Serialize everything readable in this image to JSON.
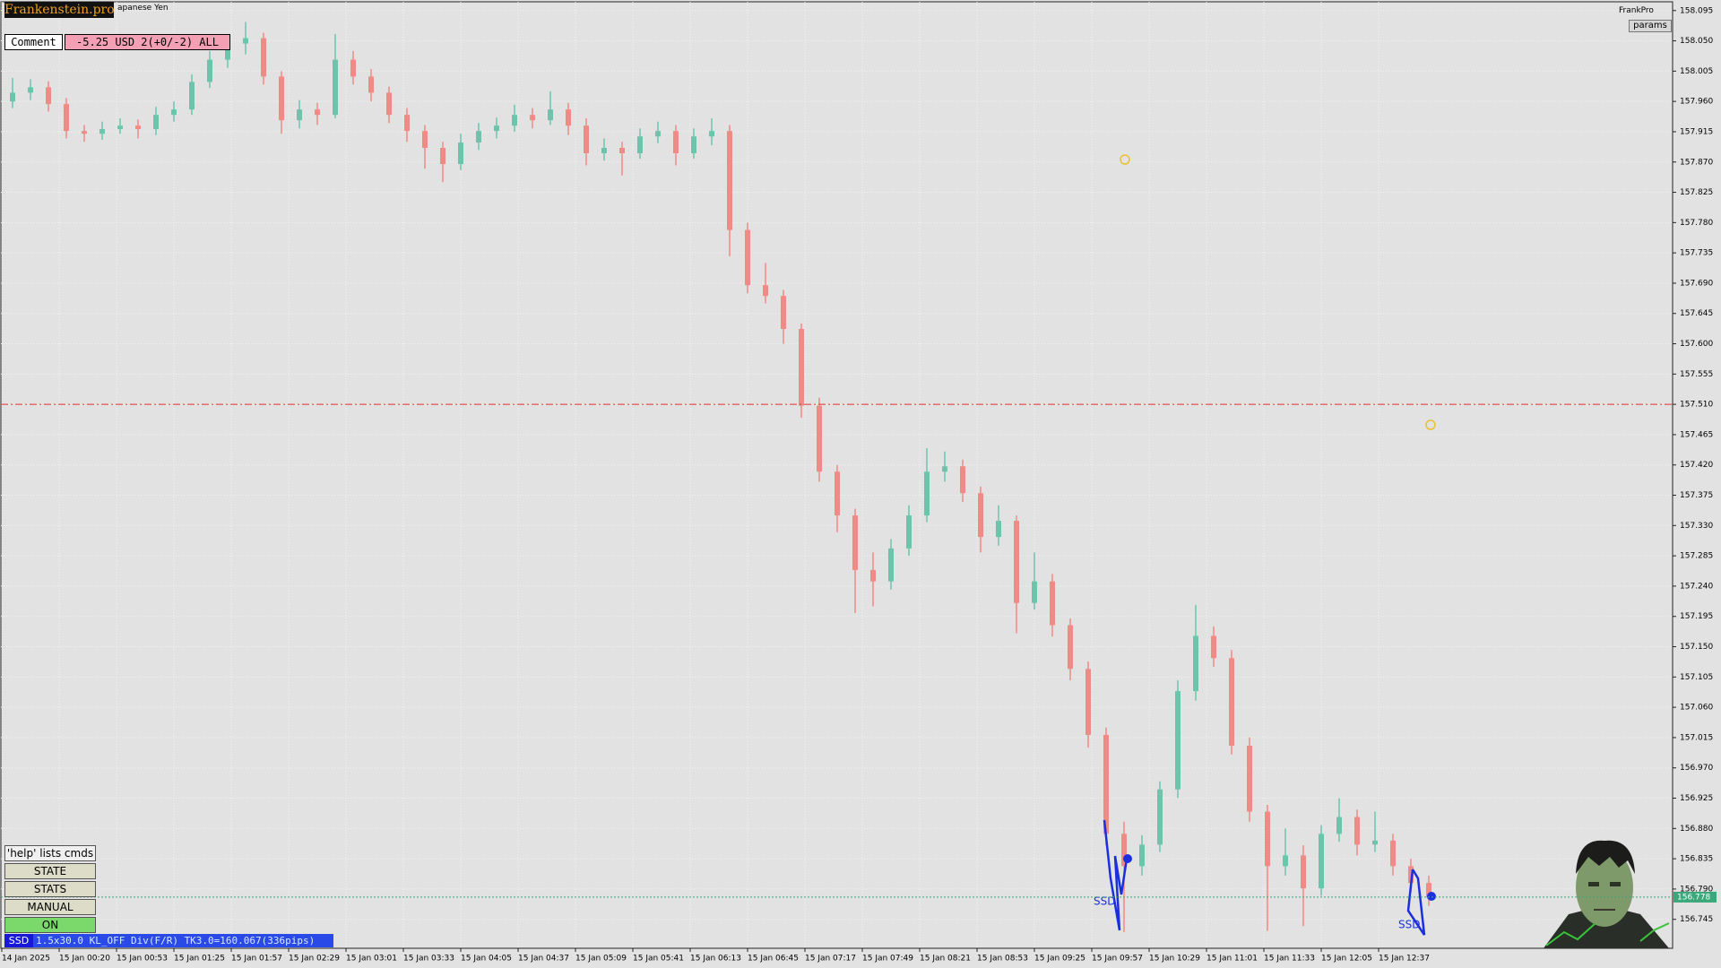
{
  "header": {
    "brand": "Frankenstein.pro",
    "symbol": "apanese Yen",
    "comment_label": "Comment",
    "comment_value": "-5.25 USD 2(+0/-2) ALL",
    "account": "FrankPro",
    "params": "params"
  },
  "buttons": [
    "'help' lists cmds",
    "STATE",
    "STATS",
    "MANUAL",
    "ON"
  ],
  "status": {
    "tag": "SSD",
    "text": "1.5x30.0 KL_OFF Div(F/R) TK3.0=160.067(336pips)"
  },
  "annotations": [
    "SSD",
    "SSD"
  ],
  "chart_data": {
    "type": "candlestick",
    "time_labels": [
      "14 Jan 2025",
      "15 Jan 00:20",
      "15 Jan 00:53",
      "15 Jan 01:25",
      "15 Jan 01:57",
      "15 Jan 02:29",
      "15 Jan 03:01",
      "15 Jan 03:33",
      "15 Jan 04:05",
      "15 Jan 04:37",
      "15 Jan 05:09",
      "15 Jan 05:41",
      "15 Jan 06:13",
      "15 Jan 06:45",
      "15 Jan 07:17",
      "15 Jan 07:49",
      "15 Jan 08:21",
      "15 Jan 08:53",
      "15 Jan 09:25",
      "15 Jan 09:57",
      "15 Jan 10:29",
      "15 Jan 11:01",
      "15 Jan 11:33",
      "15 Jan 12:05",
      "15 Jan 12:37"
    ],
    "candles": [
      [
        157.96,
        157.995,
        157.95,
        157.973
      ],
      [
        157.973,
        157.993,
        157.962,
        157.981
      ],
      [
        157.981,
        157.99,
        157.945,
        157.956
      ],
      [
        157.956,
        157.965,
        157.905,
        157.916
      ],
      [
        157.916,
        157.925,
        157.9,
        157.912
      ],
      [
        157.912,
        157.93,
        157.903,
        157.919
      ],
      [
        157.919,
        157.935,
        157.912,
        157.924
      ],
      [
        157.924,
        157.933,
        157.905,
        157.919
      ],
      [
        157.919,
        157.952,
        157.91,
        157.94
      ],
      [
        157.94,
        157.96,
        157.93,
        157.948
      ],
      [
        157.948,
        158.0,
        157.94,
        157.989
      ],
      [
        157.989,
        158.035,
        157.98,
        158.022
      ],
      [
        158.022,
        158.058,
        158.01,
        158.046
      ],
      [
        158.046,
        158.078,
        158.03,
        158.054
      ],
      [
        158.054,
        158.062,
        157.985,
        157.997
      ],
      [
        157.997,
        158.005,
        157.912,
        157.932
      ],
      [
        157.932,
        157.962,
        157.92,
        157.948
      ],
      [
        157.948,
        157.958,
        157.925,
        157.94
      ],
      [
        157.94,
        158.06,
        157.935,
        158.022
      ],
      [
        158.022,
        158.035,
        157.985,
        157.997
      ],
      [
        157.997,
        158.008,
        157.96,
        157.973
      ],
      [
        157.973,
        157.982,
        157.928,
        157.94
      ],
      [
        157.94,
        157.95,
        157.9,
        157.916
      ],
      [
        157.916,
        157.925,
        157.86,
        157.891
      ],
      [
        157.891,
        157.9,
        157.84,
        157.867
      ],
      [
        157.867,
        157.912,
        157.858,
        157.899
      ],
      [
        157.899,
        157.928,
        157.888,
        157.916
      ],
      [
        157.916,
        157.936,
        157.905,
        157.924
      ],
      [
        157.924,
        157.955,
        157.915,
        157.94
      ],
      [
        157.94,
        157.95,
        157.92,
        157.932
      ],
      [
        157.932,
        157.975,
        157.925,
        157.948
      ],
      [
        157.948,
        157.958,
        157.91,
        157.924
      ],
      [
        157.924,
        157.935,
        157.865,
        157.883
      ],
      [
        157.883,
        157.905,
        157.872,
        157.891
      ],
      [
        157.891,
        157.9,
        157.85,
        157.883
      ],
      [
        157.883,
        157.92,
        157.875,
        157.908
      ],
      [
        157.908,
        157.93,
        157.898,
        157.916
      ],
      [
        157.916,
        157.925,
        157.865,
        157.883
      ],
      [
        157.883,
        157.92,
        157.875,
        157.908
      ],
      [
        157.908,
        157.935,
        157.895,
        157.916
      ],
      [
        157.916,
        157.925,
        157.73,
        157.769
      ],
      [
        157.769,
        157.78,
        157.675,
        157.687
      ],
      [
        157.687,
        157.72,
        157.66,
        157.671
      ],
      [
        157.671,
        157.68,
        157.6,
        157.622
      ],
      [
        157.622,
        157.63,
        157.49,
        157.508
      ],
      [
        157.508,
        157.52,
        157.395,
        157.41
      ],
      [
        157.41,
        157.42,
        157.32,
        157.345
      ],
      [
        157.345,
        157.355,
        157.2,
        157.264
      ],
      [
        157.264,
        157.29,
        157.21,
        157.247
      ],
      [
        157.247,
        157.31,
        157.235,
        157.296
      ],
      [
        157.296,
        157.36,
        157.285,
        157.345
      ],
      [
        157.345,
        157.445,
        157.335,
        157.41
      ],
      [
        157.41,
        157.44,
        157.395,
        157.418
      ],
      [
        157.418,
        157.428,
        157.365,
        157.378
      ],
      [
        157.378,
        157.388,
        157.29,
        157.313
      ],
      [
        157.313,
        157.36,
        157.3,
        157.337
      ],
      [
        157.337,
        157.345,
        157.17,
        157.215
      ],
      [
        157.215,
        157.29,
        157.205,
        157.247
      ],
      [
        157.247,
        157.258,
        157.165,
        157.182
      ],
      [
        157.182,
        157.192,
        157.1,
        157.117
      ],
      [
        157.117,
        157.128,
        157.0,
        157.019
      ],
      [
        157.019,
        157.03,
        156.855,
        156.872
      ],
      [
        156.872,
        156.89,
        156.726,
        156.824
      ],
      [
        156.824,
        156.87,
        156.81,
        156.856
      ],
      [
        156.856,
        156.95,
        156.845,
        156.938
      ],
      [
        156.938,
        157.1,
        156.925,
        157.084
      ],
      [
        157.084,
        157.212,
        157.07,
        157.166
      ],
      [
        157.166,
        157.18,
        157.12,
        157.133
      ],
      [
        157.133,
        157.145,
        156.99,
        157.003
      ],
      [
        157.003,
        157.015,
        156.89,
        156.905
      ],
      [
        156.905,
        156.915,
        156.728,
        156.824
      ],
      [
        156.824,
        156.88,
        156.81,
        156.84
      ],
      [
        156.84,
        156.855,
        156.735,
        156.791
      ],
      [
        156.791,
        156.885,
        156.78,
        156.872
      ],
      [
        156.872,
        156.925,
        156.86,
        156.897
      ],
      [
        156.897,
        156.908,
        156.84,
        156.856
      ],
      [
        156.856,
        156.905,
        156.845,
        156.862
      ],
      [
        156.862,
        156.872,
        156.81,
        156.824
      ],
      [
        156.824,
        156.835,
        156.785,
        156.799
      ],
      [
        156.799,
        156.81,
        156.765,
        156.778
      ]
    ],
    "up_color": "#6cc4ad",
    "down_color": "#f08a84",
    "ylim": [
      156.702,
      158.108
    ],
    "yticks": [
      158.095,
      {
        "value": 158.05,
        "label": "158.050"
      },
      158.005,
      {
        "value": 157.96,
        "label": "157.960"
      },
      157.915,
      {
        "value": 157.87,
        "label": "157.870"
      },
      157.825,
      {
        "value": 157.78,
        "label": "157.780"
      },
      157.735,
      {
        "value": 157.69,
        "label": "157.690"
      },
      157.645,
      {
        "value": 157.6,
        "label": "157.600"
      },
      157.555,
      {
        "value": 157.51,
        "label": "157.510"
      },
      157.465,
      {
        "value": 157.42,
        "label": "157.420"
      },
      157.375,
      {
        "value": 157.33,
        "label": "157.330"
      },
      157.285,
      {
        "value": 157.24,
        "label": "157.240"
      },
      157.195,
      {
        "value": 157.15,
        "label": "157.150"
      },
      157.105,
      {
        "value": 157.06,
        "label": "157.060"
      },
      157.015,
      {
        "value": 156.97,
        "label": "156.970"
      },
      156.925,
      {
        "value": 156.88,
        "label": "156.880"
      },
      156.835,
      {
        "value": 156.79,
        "label": "156.790"
      },
      156.745
    ],
    "grid": true,
    "level_line": 157.51,
    "level_color": "#e03030",
    "price": 156.778,
    "price_color": "#3aa87a"
  }
}
